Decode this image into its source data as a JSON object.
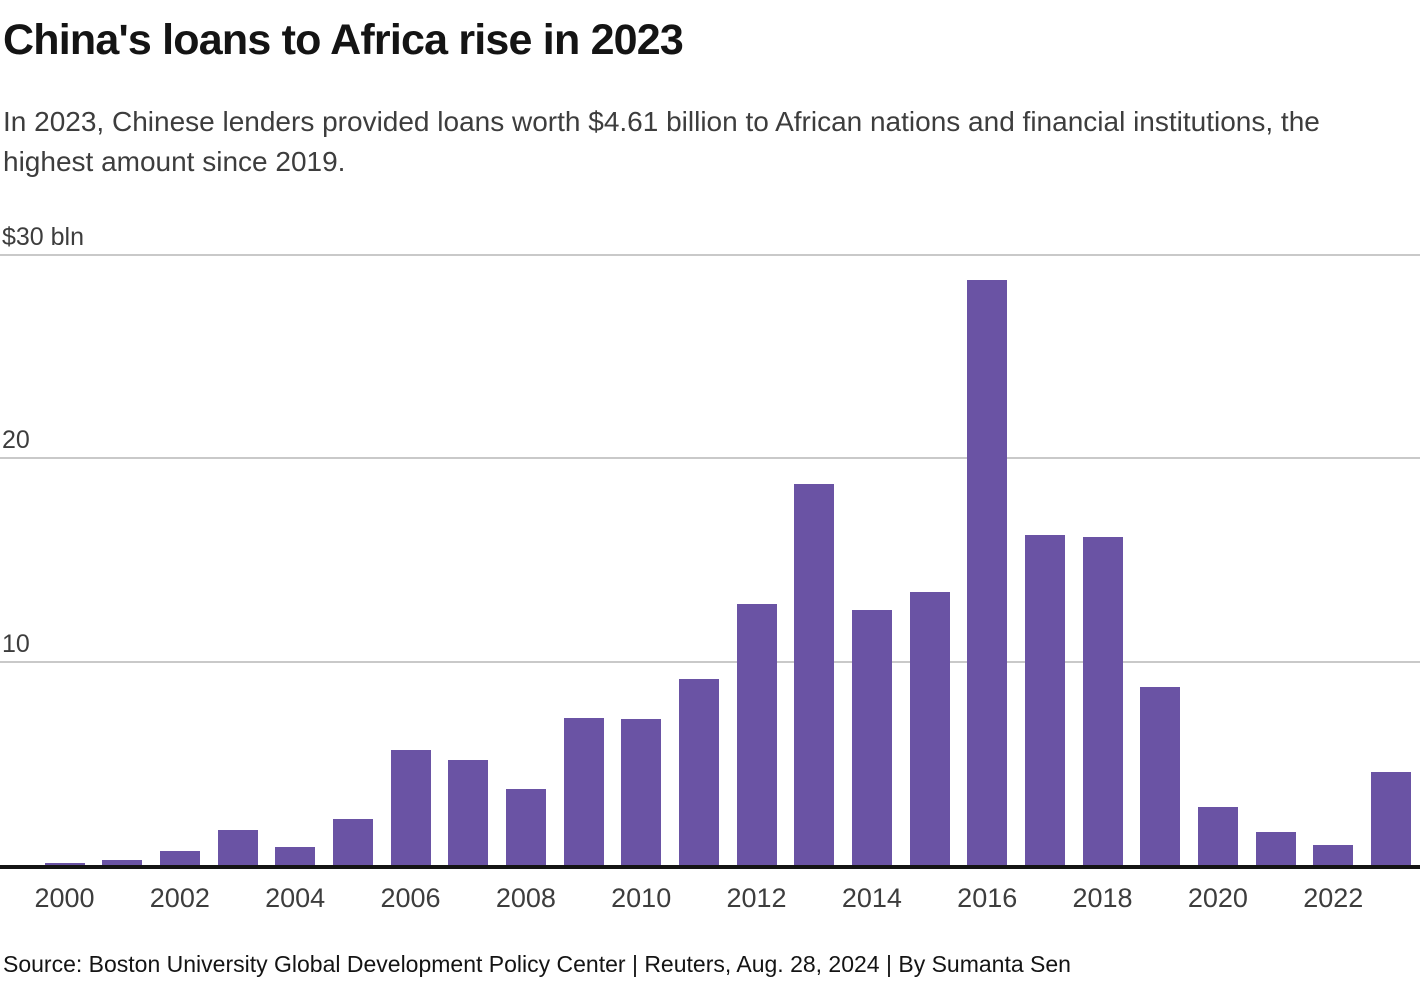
{
  "header": {
    "title": "China's loans to Africa rise in 2023",
    "subtitle": "In 2023, Chinese lenders provided loans worth $4.61 billion to African nations and financial institutions, the\nhighest amount since 2019."
  },
  "footer": {
    "source_line": "Source: Boston University Global Development Policy Center | Reuters, Aug. 28, 2024 | By Sumanta Sen"
  },
  "colors": {
    "bar": "#6a53a4",
    "gridline": "#c9c9c9",
    "axis_line": "#141414",
    "text_primary": "#141414",
    "text_secondary": "#3d3d3d"
  },
  "chart_data": {
    "type": "bar",
    "title": "China's loans to Africa rise in 2023",
    "xlabel": "",
    "ylabel": "$ bln",
    "ylim": [
      0,
      30
    ],
    "grid": true,
    "legend": false,
    "categories": [
      2000,
      2001,
      2002,
      2003,
      2004,
      2005,
      2006,
      2007,
      2008,
      2009,
      2010,
      2011,
      2012,
      2013,
      2014,
      2015,
      2016,
      2017,
      2018,
      2019,
      2020,
      2021,
      2022,
      2023
    ],
    "values": [
      0.15,
      0.3,
      0.75,
      1.75,
      0.95,
      2.3,
      5.7,
      5.2,
      3.8,
      7.3,
      7.25,
      9.2,
      12.9,
      18.8,
      12.6,
      13.5,
      28.8,
      16.3,
      16.2,
      8.8,
      2.9,
      1.65,
      1.05,
      4.61
    ],
    "y_ticks": [
      {
        "value": 30,
        "label": "$30 bln"
      },
      {
        "value": 20,
        "label": "20"
      },
      {
        "value": 10,
        "label": "10"
      }
    ],
    "x_tick_labels": [
      "2000",
      "2002",
      "2004",
      "2006",
      "2008",
      "2010",
      "2012",
      "2014",
      "2016",
      "2018",
      "2020",
      "2022"
    ]
  }
}
